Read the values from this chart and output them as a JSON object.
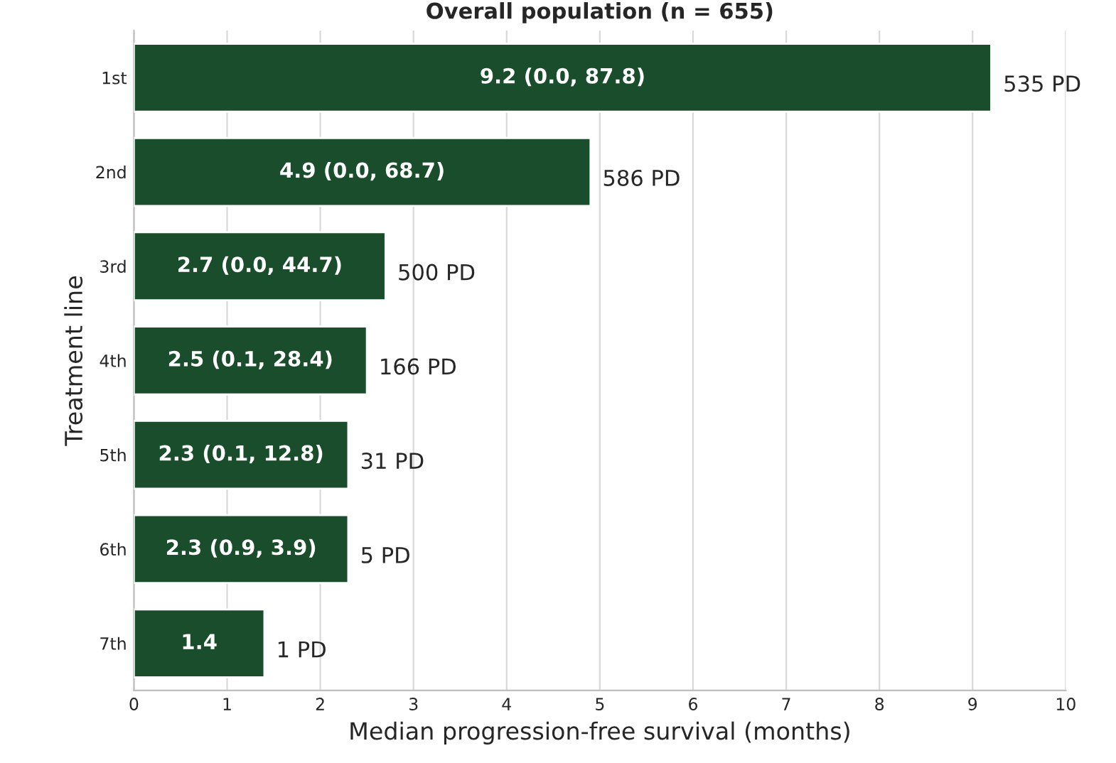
{
  "chart_data": {
    "type": "bar",
    "orientation": "horizontal",
    "title": "Overall population (n = 655)",
    "xlabel": "Median progression-free survival (months)",
    "ylabel": "Treatment line",
    "categories": [
      "1st",
      "2nd",
      "3rd",
      "4th",
      "5th",
      "6th",
      "7th"
    ],
    "values": [
      9.2,
      4.9,
      2.7,
      2.5,
      2.3,
      2.3,
      1.4
    ],
    "value_labels": [
      "9.2 (0.0, 87.8)",
      "4.9 (0.0, 68.7)",
      "2.7 (0.0, 44.7)",
      "2.5 (0.1, 28.4)",
      "2.3 (0.1, 12.8)",
      "2.3 (0.9, 3.9)",
      "1.4"
    ],
    "color": "#1a4d2b",
    "xlim": [
      0,
      10
    ],
    "xticks": [
      0,
      1,
      2,
      3,
      4,
      5,
      6,
      7,
      8,
      9,
      10
    ],
    "grid": "x",
    "annotations": [
      {
        "text": "535 PD",
        "x": 9.2,
        "y": "1st"
      },
      {
        "text": "586 PD",
        "x": 4.9,
        "y": "2nd"
      },
      {
        "text": "500 PD",
        "x": 2.7,
        "y": "3rd"
      },
      {
        "text": "166 PD",
        "x": 2.5,
        "y": "4th"
      },
      {
        "text": "31 PD",
        "x": 2.3,
        "y": "5th"
      },
      {
        "text": "5 PD",
        "x": 2.3,
        "y": "6th"
      },
      {
        "text": "1 PD",
        "x": 1.4,
        "y": "7th"
      }
    ]
  }
}
